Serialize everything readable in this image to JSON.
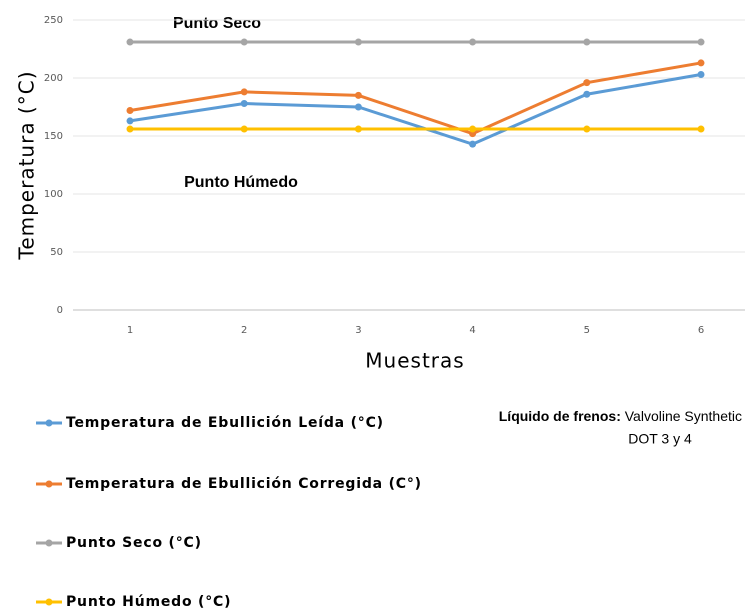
{
  "chart_data": {
    "type": "line",
    "y_label": "Temperatura (°C)",
    "x_label": "Muestras",
    "categories": [
      "1",
      "2",
      "3",
      "4",
      "5",
      "6"
    ],
    "series": [
      {
        "name": "Temperatura de Ebullición Leída (°C)",
        "color": "#5b9bd5",
        "values": [
          163,
          178,
          175,
          143,
          186,
          203
        ]
      },
      {
        "name": "Temperatura de Ebullición Corregida (C°)",
        "color": "#ed7d31",
        "values": [
          172,
          188,
          185,
          152,
          196,
          213
        ]
      },
      {
        "name": "Punto Seco (°C)",
        "color": "#a5a5a5",
        "values": [
          231,
          231,
          231,
          231,
          231,
          231
        ]
      },
      {
        "name": "Punto Húmedo (°C)",
        "color": "#ffc000",
        "values": [
          156,
          156,
          156,
          156,
          156,
          156
        ]
      }
    ],
    "ylim": [
      0,
      250
    ],
    "yticks": [
      0,
      50,
      100,
      150,
      200,
      250
    ],
    "grid": true,
    "annotations": [
      "Punto Seco",
      "Punto Húmedo"
    ],
    "note": {
      "label": "Líquido de frenos:",
      "lines": [
        "Valvoline Synthetic",
        "DOT 3 y 4"
      ]
    }
  }
}
